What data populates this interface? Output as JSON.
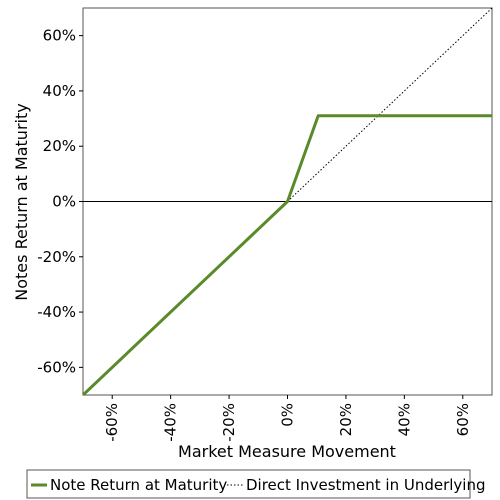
{
  "chart_data": {
    "type": "line",
    "xlabel": "Market Measure Movement",
    "ylabel": "Notes Return at Maturity",
    "xlim": [
      -70,
      70
    ],
    "ylim": [
      -70,
      70
    ],
    "x_ticks": [
      -60,
      -40,
      -20,
      0,
      20,
      40,
      60
    ],
    "y_ticks": [
      60,
      40,
      20,
      0,
      -20,
      -40,
      -60
    ],
    "x_tick_labels": [
      "-60%",
      "-40%",
      "-20%",
      "0%",
      "20%",
      "40%",
      "60%"
    ],
    "y_tick_labels": [
      "60%",
      "40%",
      "20%",
      "0%",
      "-20%",
      "-40%",
      "-60%"
    ],
    "grid": false,
    "legend_position": "bottom",
    "series": [
      {
        "name": "Note Return at Maturity",
        "color": "#5a8a2a",
        "style": "solid",
        "points": [
          [
            -70,
            -70
          ],
          [
            0,
            0
          ],
          [
            10.5,
            31
          ],
          [
            70,
            31
          ]
        ]
      },
      {
        "name": "Direct Investment in Underlying",
        "color": "#000000",
        "style": "dotted",
        "points": [
          [
            0,
            0
          ],
          [
            70,
            70
          ]
        ]
      }
    ]
  }
}
